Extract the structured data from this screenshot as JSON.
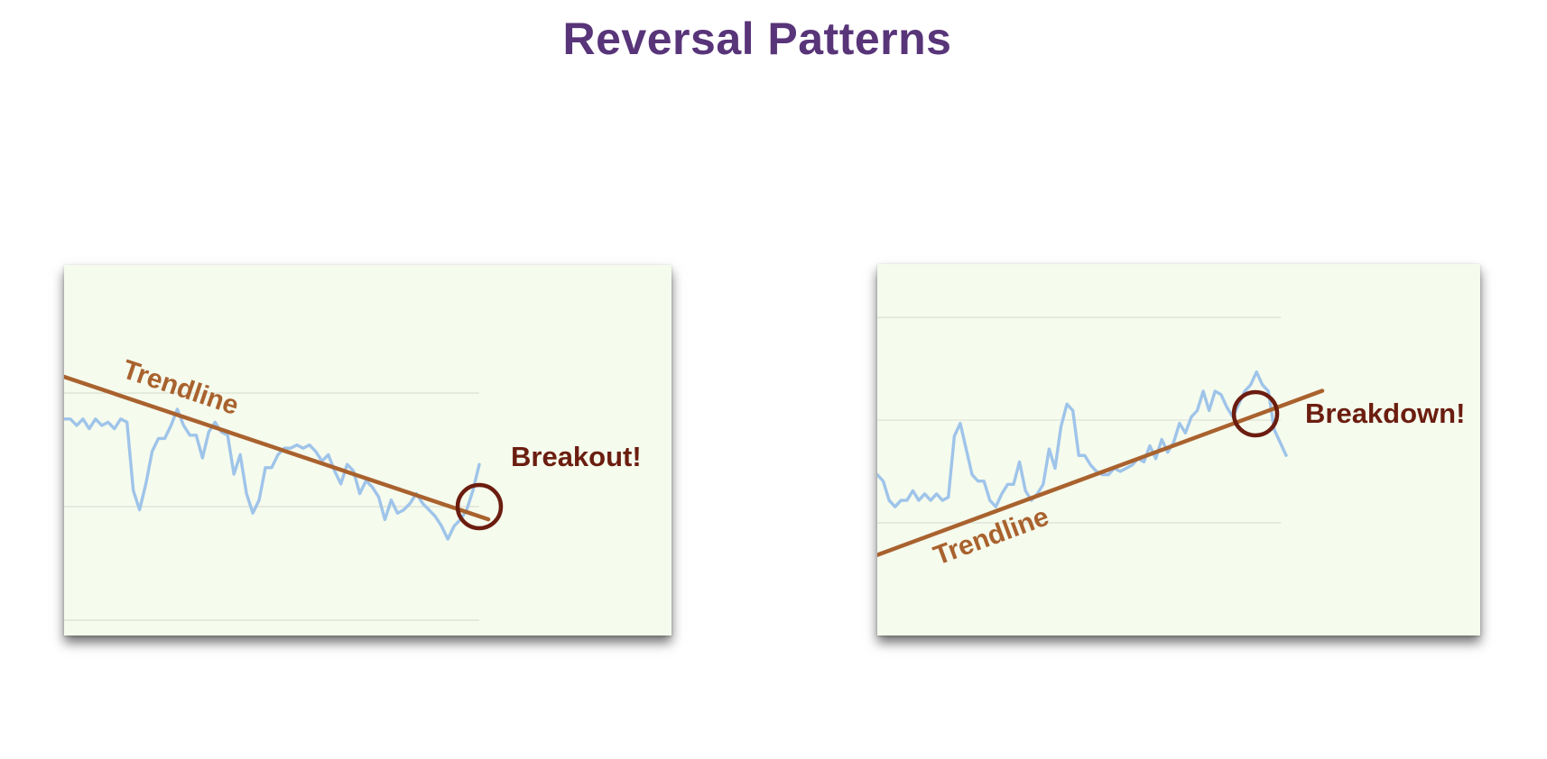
{
  "title": "Reversal Patterns",
  "colors": {
    "title": "#583479",
    "panel_background": "#f5fbed",
    "price_line": "#9fc4ea",
    "trendline": "#a9622e",
    "trendline_label": "#a9622e",
    "callout_circle": "#6b1d10",
    "callout_text": "#6b1d10",
    "gridline": "#d9dfd4"
  },
  "chart_data": [
    {
      "type": "line",
      "xlim": [
        0,
        100
      ],
      "ylim": [
        0,
        100
      ],
      "grid": true,
      "gridlines_y": [
        0,
        35,
        70
      ],
      "series": [
        {
          "values": [
            62,
            62,
            60,
            62,
            59,
            62,
            60,
            61,
            59,
            62,
            61,
            40,
            34,
            42,
            52,
            56,
            56,
            60,
            65,
            60,
            57,
            57,
            50,
            58,
            61,
            58,
            57,
            45,
            51,
            39,
            33,
            37,
            47,
            47,
            51,
            53,
            53,
            54,
            53,
            54,
            52,
            49,
            51,
            46,
            42,
            48,
            46,
            39,
            43,
            41,
            38,
            31,
            37,
            33,
            34,
            36,
            39,
            36,
            34,
            32,
            29,
            25,
            29,
            31,
            34,
            40,
            48
          ]
        }
      ],
      "trendline": {
        "label": "Trendline",
        "from": [
          0,
          75
        ],
        "to": [
          100,
          32
        ]
      },
      "callout": {
        "label": "Breakout!",
        "at": [
          100,
          35
        ]
      }
    },
    {
      "type": "line",
      "xlim": [
        0,
        100
      ],
      "ylim": [
        0,
        100
      ],
      "grid": true,
      "gridlines_y": [
        25,
        57,
        89
      ],
      "series": [
        {
          "values": [
            40,
            38,
            32,
            30,
            32,
            32,
            35,
            32,
            34,
            32,
            34,
            32,
            33,
            52,
            56,
            48,
            40,
            38,
            38,
            32,
            30,
            34,
            37,
            37,
            44,
            35,
            32,
            34,
            37,
            48,
            42,
            55,
            62,
            60,
            46,
            46,
            43,
            41,
            40,
            40,
            42,
            41,
            42,
            43,
            45,
            44,
            49,
            45,
            51,
            47,
            50,
            56,
            53,
            58,
            60,
            66,
            60,
            66,
            65,
            61,
            58,
            62,
            66,
            68,
            72,
            68,
            66,
            54,
            50,
            46
          ]
        }
      ],
      "trendline": {
        "label": "Trendline",
        "from": [
          0,
          15
        ],
        "to": [
          100,
          62
        ]
      },
      "callout": {
        "label": "Breakdown!",
        "at": [
          92.5,
          59
        ]
      }
    }
  ]
}
